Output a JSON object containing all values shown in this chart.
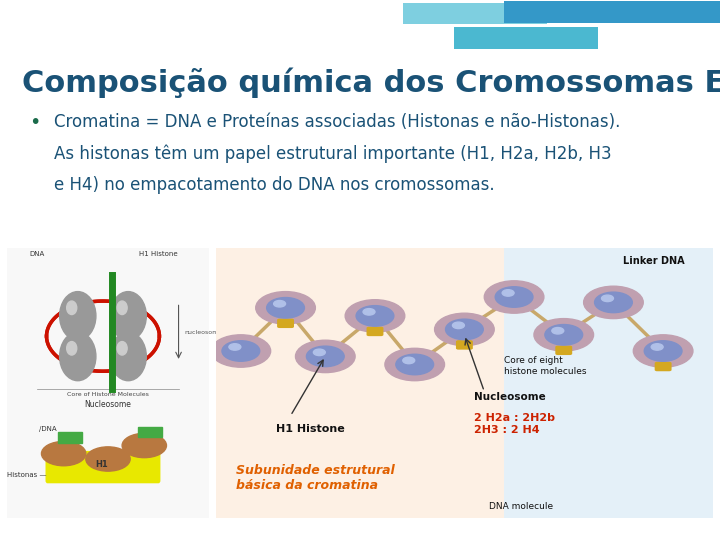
{
  "title": "Composição química dos Cromossomas Eucariótos",
  "title_color": "#1a5276",
  "title_fontsize": 22,
  "bullet_text_line1": "Cromatina = DNA e Proteínas associadas (Histonas e não-Histonas).",
  "bullet_text_line2": "As histonas têm um papel estrutural importante (H1, H2a, H2b, H3",
  "bullet_text_line3": "e H4) no empacotamento do DNA nos cromossomas.",
  "bullet_color": "#1a6b4a",
  "text_color": "#1a5276",
  "background_color": "#ffffff",
  "fig_width": 7.2,
  "fig_height": 5.4
}
